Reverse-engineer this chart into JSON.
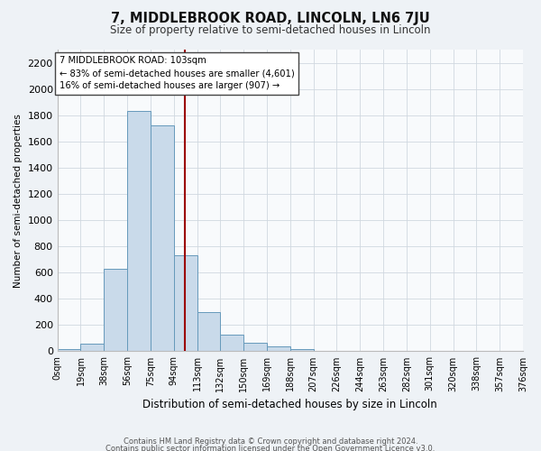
{
  "title": "7, MIDDLEBROOK ROAD, LINCOLN, LN6 7JU",
  "subtitle": "Size of property relative to semi-detached houses in Lincoln",
  "xlabel": "Distribution of semi-detached houses by size in Lincoln",
  "ylabel": "Number of semi-detached properties",
  "bin_labels": [
    "0sqm",
    "19sqm",
    "38sqm",
    "56sqm",
    "75sqm",
    "94sqm",
    "113sqm",
    "132sqm",
    "150sqm",
    "169sqm",
    "188sqm",
    "207sqm",
    "226sqm",
    "244sqm",
    "263sqm",
    "282sqm",
    "301sqm",
    "320sqm",
    "338sqm",
    "357sqm",
    "376sqm"
  ],
  "bar_heights": [
    15,
    60,
    630,
    1830,
    1720,
    730,
    300,
    130,
    65,
    40,
    15,
    5,
    0,
    0,
    0,
    0,
    0,
    0,
    0,
    0
  ],
  "bar_color": "#c9daea",
  "bar_edge_color": "#6699bb",
  "property_value_idx": 5.47,
  "vline_color": "#9b0000",
  "annotation_title": "7 MIDDLEBROOK ROAD: 103sqm",
  "annotation_line1": "← 83% of semi-detached houses are smaller (4,601)",
  "annotation_line2": "16% of semi-detached houses are larger (907) →",
  "annotation_box_color": "#ffffff",
  "annotation_box_edge": "#444444",
  "ylim_max": 2300,
  "yticks": [
    0,
    200,
    400,
    600,
    800,
    1000,
    1200,
    1400,
    1600,
    1800,
    2000,
    2200
  ],
  "footnote1": "Contains HM Land Registry data © Crown copyright and database right 2024.",
  "footnote2": "Contains public sector information licensed under the Open Government Licence v3.0.",
  "background_color": "#eef2f6",
  "plot_bg_color": "#f8fafc",
  "grid_color": "#d0d8e0",
  "n_bins": 20
}
